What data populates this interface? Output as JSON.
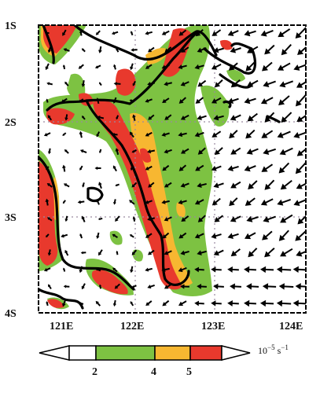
{
  "map": {
    "latitude_labels": [
      "1S",
      "2S",
      "3S",
      "4S"
    ],
    "longitude_labels": [
      "121E",
      "122E",
      "123E",
      "124E"
    ],
    "gridlines": "dotted",
    "coastline_color": "#000000"
  },
  "colorbar": {
    "tick_labels": [
      "2",
      "4",
      "5"
    ],
    "unit_base": "10",
    "unit_exp": "−5",
    "unit_tail": "s",
    "unit_tail_exp": "−1",
    "colors": [
      "#ffffff",
      "#7dc242",
      "#f7b731",
      "#e8392d",
      "#ffffff"
    ]
  },
  "shading_colors": {
    "green": "#7dc242",
    "orange": "#f7b731",
    "red": "#e8392d"
  },
  "wind_vectors": "black arrows, predominantly from the east-northeast"
}
